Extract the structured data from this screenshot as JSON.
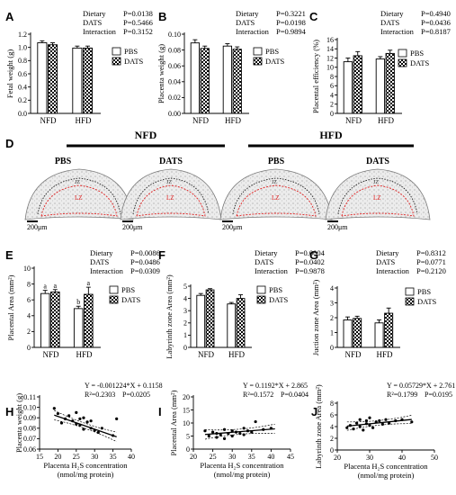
{
  "groups": [
    "NFD",
    "HFD"
  ],
  "legend": [
    "PBS",
    "DATS"
  ],
  "factors": [
    "Dietary",
    "DATS",
    "Interaction"
  ],
  "chart_data": [
    {
      "panel": "A",
      "type": "bar",
      "ylabel": "Fetal weight (g)",
      "categories": [
        "NFD",
        "HFD"
      ],
      "yticks": [
        "0.0",
        "0.2",
        "0.4",
        "0.6",
        "0.8",
        "1.0",
        "1.2"
      ],
      "ylim": [
        0,
        1.2
      ],
      "series": [
        {
          "name": "PBS",
          "values": [
            1.07,
            0.99
          ],
          "err": [
            0.03,
            0.03
          ]
        },
        {
          "name": "DATS",
          "values": [
            1.04,
            0.99
          ],
          "err": [
            0.03,
            0.03
          ]
        }
      ],
      "stats": [
        "P=0.0138",
        "P=0.5466",
        "P=0.3152"
      ]
    },
    {
      "panel": "B",
      "type": "bar",
      "ylabel": "Placenta weight (g)",
      "categories": [
        "NFD",
        "HFD"
      ],
      "yticks": [
        "0.00",
        "0.02",
        "0.04",
        "0.06",
        "0.08",
        "0.10"
      ],
      "ylim": [
        0,
        0.1
      ],
      "series": [
        {
          "name": "PBS",
          "values": [
            0.089,
            0.085
          ],
          "err": [
            0.004,
            0.003
          ]
        },
        {
          "name": "DATS",
          "values": [
            0.082,
            0.081
          ],
          "err": [
            0.003,
            0.003
          ]
        }
      ],
      "stats": [
        "P=0.3221",
        "P=0.0198",
        "P=0.9894"
      ]
    },
    {
      "panel": "C",
      "type": "bar",
      "ylabel": "Placental efficiency (%)",
      "categories": [
        "NFD",
        "HFD"
      ],
      "yticks": [
        "0",
        "2",
        "4",
        "6",
        "8",
        "10",
        "12",
        "14",
        "16"
      ],
      "ylim": [
        0,
        16
      ],
      "series": [
        {
          "name": "PBS",
          "values": [
            11.2,
            11.8
          ],
          "err": [
            0.8,
            0.5
          ]
        },
        {
          "name": "DATS",
          "values": [
            12.5,
            13.0
          ],
          "err": [
            0.9,
            0.7
          ]
        }
      ],
      "stats": [
        "P=0.4940",
        "P=0.0436",
        "P=0.8187"
      ]
    },
    {
      "panel": "E",
      "type": "bar",
      "ylabel": "Placental Area (mm²)",
      "categories": [
        "NFD",
        "HFD"
      ],
      "yticks": [
        "0",
        "2",
        "4",
        "6",
        "8",
        "10"
      ],
      "ylim": [
        0,
        10
      ],
      "series": [
        {
          "name": "PBS",
          "values": [
            6.8,
            4.9
          ],
          "err": [
            0.4,
            0.3
          ],
          "letters": [
            "a",
            "b"
          ]
        },
        {
          "name": "DATS",
          "values": [
            7.0,
            6.7
          ],
          "err": [
            0.3,
            0.9
          ],
          "letters": [
            "a",
            "a"
          ]
        }
      ],
      "stats": [
        "P=0.0086",
        "P=0.0486",
        "P=0.0309"
      ]
    },
    {
      "panel": "F",
      "type": "bar",
      "ylabel": "Labyrinth zone Area (mm²)",
      "categories": [
        "NFD",
        "HFD"
      ],
      "yticks": [
        "0",
        "1",
        "2",
        "3",
        "4",
        "5"
      ],
      "ylim": [
        0,
        5
      ],
      "series": [
        {
          "name": "PBS",
          "values": [
            4.25,
            3.55
          ],
          "err": [
            0.15,
            0.12
          ]
        },
        {
          "name": "DATS",
          "values": [
            4.7,
            4.0
          ],
          "err": [
            0.1,
            0.3
          ]
        }
      ],
      "stats": [
        "P=0.0004",
        "P=0.0402",
        "P=0.9878"
      ]
    },
    {
      "panel": "G",
      "type": "bar",
      "ylabel": "Juction zone Area (mm²)",
      "categories": [
        "NFD",
        "HFD"
      ],
      "yticks": [
        "0",
        "1",
        "2",
        "3",
        "4"
      ],
      "ylim": [
        0,
        4
      ],
      "series": [
        {
          "name": "PBS",
          "values": [
            1.85,
            1.65
          ],
          "err": [
            0.2,
            0.2
          ]
        },
        {
          "name": "DATS",
          "values": [
            1.95,
            2.3
          ],
          "err": [
            0.15,
            0.35
          ]
        }
      ],
      "stats": [
        "P=0.8312",
        "P=0.0771",
        "P=0.2120"
      ]
    },
    {
      "panel": "H",
      "type": "scatter",
      "ylabel": "Placenta weight (g)",
      "xlabel": "Placenta H₂S concentration",
      "xlabel2": "(nmol/mg protein)",
      "xticks": [
        "15",
        "20",
        "25",
        "30",
        "35",
        "40"
      ],
      "xlim": [
        15,
        40
      ],
      "yticks": [
        "0.06",
        "0.07",
        "0.08",
        "0.09",
        "0.10",
        "0.11"
      ],
      "ylim": [
        0.06,
        0.11
      ],
      "equation": "Y = -0.001224*X + 0.1158",
      "r2": "R²=0.2303",
      "p": "P=0.0205",
      "slope": -0.001224,
      "intercept": 0.1158,
      "fit_x": [
        19,
        36
      ],
      "x": [
        19,
        20,
        21,
        22,
        23,
        24,
        25,
        25,
        26,
        26,
        27,
        27,
        28,
        29,
        29,
        30,
        31,
        32,
        35,
        36
      ],
      "y": [
        0.099,
        0.094,
        0.085,
        0.089,
        0.092,
        0.087,
        0.095,
        0.084,
        0.083,
        0.089,
        0.079,
        0.09,
        0.086,
        0.08,
        0.087,
        0.078,
        0.076,
        0.08,
        0.073,
        0.089
      ]
    },
    {
      "panel": "I",
      "type": "scatter",
      "ylabel": "Placental Area (mm²)",
      "xlabel": "Placenta H₂S concentration",
      "xlabel2": "(nmol/mg protein)",
      "xticks": [
        "20",
        "25",
        "30",
        "35",
        "40",
        "45"
      ],
      "xlim": [
        20,
        45
      ],
      "yticks": [
        "0",
        "5",
        "10",
        "15",
        "20"
      ],
      "ylim": [
        0,
        20
      ],
      "equation": "Y = 0.1192*X + 2.865",
      "r2": "R²=0.1572",
      "p": "P=0.0404",
      "slope": 0.1192,
      "intercept": 2.865,
      "fit_x": [
        23,
        41
      ],
      "x": [
        23,
        24,
        25,
        26,
        26,
        27,
        28,
        28,
        29,
        30,
        30,
        31,
        32,
        33,
        33,
        34,
        35,
        36,
        38,
        40
      ],
      "y": [
        7.0,
        5.0,
        6.5,
        4.5,
        6.0,
        5.5,
        7.5,
        4.0,
        6.0,
        5.0,
        7.0,
        6.5,
        6.0,
        8.0,
        5.5,
        7.0,
        6.5,
        10.5,
        7.5,
        8.0
      ]
    },
    {
      "panel": "J",
      "type": "scatter",
      "ylabel": "Labyrinth zone Area (mm²)",
      "xlabel": "Placenta H₂S concentration",
      "xlabel2": "(nmol/mg protein)",
      "xticks": [
        "20",
        "30",
        "40",
        "50"
      ],
      "xlim": [
        20,
        50
      ],
      "yticks": [
        "0",
        "2",
        "4",
        "6",
        "8"
      ],
      "ylim": [
        0,
        8
      ],
      "equation": "Y = 0.05729*X + 2.761",
      "r2": "R²=0.1799",
      "p": "P=0.0195",
      "slope": 0.05729,
      "intercept": 2.761,
      "fit_x": [
        23,
        43
      ],
      "x": [
        23,
        24,
        25,
        26,
        27,
        27,
        28,
        29,
        29,
        30,
        30,
        31,
        32,
        33,
        34,
        35,
        36,
        38,
        40,
        43
      ],
      "y": [
        3.8,
        4.2,
        3.6,
        4.6,
        4.0,
        5.2,
        3.4,
        4.5,
        5.0,
        4.2,
        5.5,
        3.8,
        4.8,
        5.0,
        4.4,
        5.2,
        4.6,
        5.0,
        5.2,
        4.8
      ]
    }
  ],
  "histology": {
    "group_titles": [
      "NFD",
      "HFD"
    ],
    "images": [
      {
        "label": "PBS"
      },
      {
        "label": "DATS"
      },
      {
        "label": "PBS"
      },
      {
        "label": "DATS"
      }
    ],
    "zone_labels": [
      "JZ",
      "LZ"
    ],
    "scale_bar": "200μm"
  }
}
